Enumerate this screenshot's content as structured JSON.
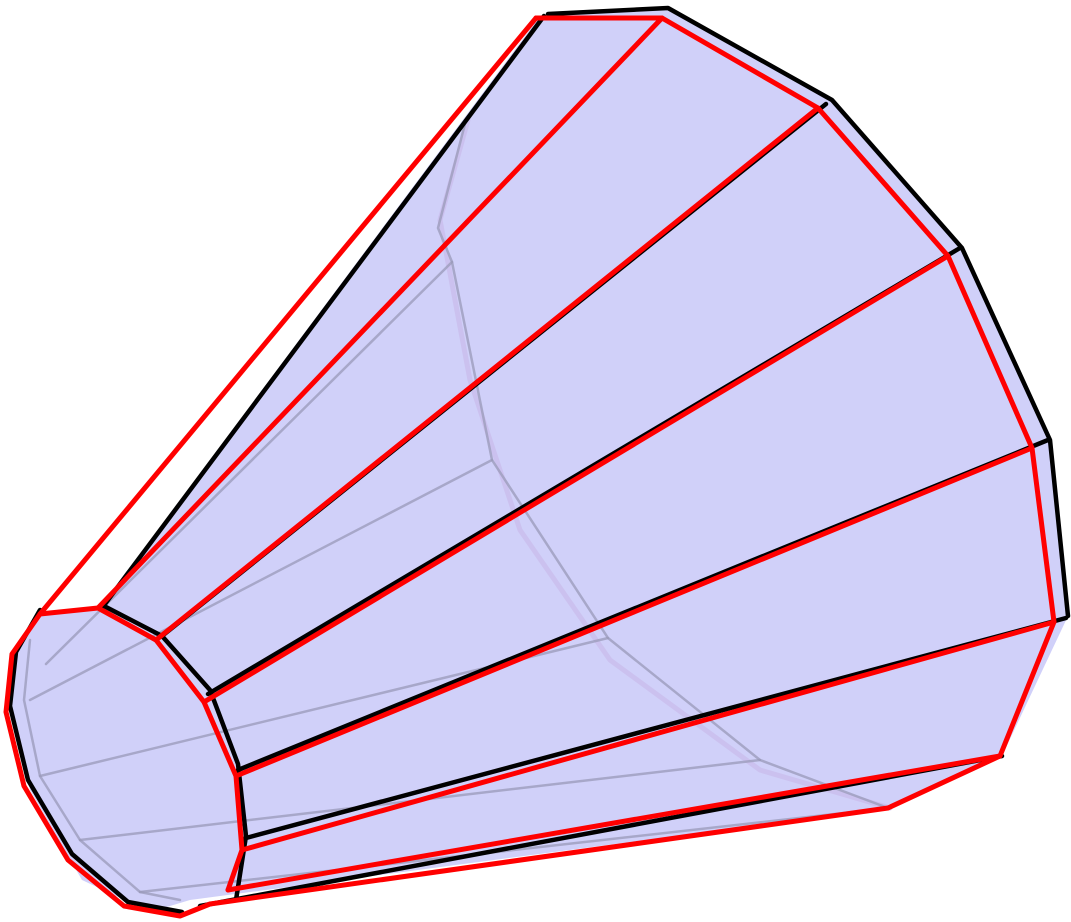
{
  "figure": {
    "kind": "3D frustum (truncated cone) wireframe",
    "faces": 12,
    "colors": {
      "face_fill": "#c8c8f8",
      "hidden_edges": "#9a9ab8",
      "original_edges": "#000000",
      "overlay_edges": "#ff0000",
      "background": "#ffffff"
    },
    "layers": [
      "translucent-faces",
      "hidden-edges",
      "black-wireframe",
      "red-wireframe"
    ]
  }
}
